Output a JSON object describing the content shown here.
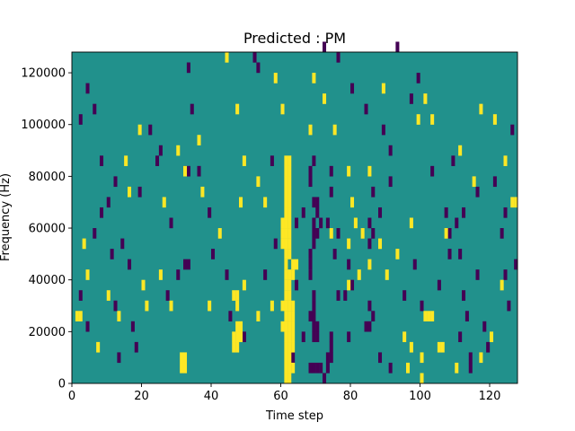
{
  "chart_data": {
    "type": "heatmap",
    "title": "Predicted : PM",
    "xlabel": "Time step",
    "ylabel": "Frequency (Hz)",
    "xlim": [
      0,
      128
    ],
    "ylim": [
      0,
      128000
    ],
    "x_ticks": [
      0,
      20,
      40,
      60,
      80,
      100,
      120
    ],
    "y_ticks": [
      0,
      20000,
      40000,
      60000,
      80000,
      100000,
      120000
    ],
    "grid": false,
    "legend": "none",
    "colormap": "viridis",
    "colors": {
      "background": "#21918c",
      "high": "#fde725",
      "low": "#440154"
    },
    "cell_size": {
      "time_steps": 1,
      "frequency_hz": 4000
    },
    "cell_value_levels": {
      "low": 0,
      "background": 0.5,
      "high": 1
    },
    "high_cells": [
      [
        61,
        0
      ],
      [
        62,
        0
      ],
      [
        61,
        4000
      ],
      [
        62,
        4000
      ],
      [
        63,
        4000
      ],
      [
        31,
        4000
      ],
      [
        32,
        4000
      ],
      [
        61,
        8000
      ],
      [
        62,
        8000
      ],
      [
        31,
        8000
      ],
      [
        32,
        8000
      ],
      [
        46,
        12000
      ],
      [
        47,
        12000
      ],
      [
        61,
        12000
      ],
      [
        62,
        12000
      ],
      [
        63,
        12000
      ],
      [
        46,
        16000
      ],
      [
        47,
        16000
      ],
      [
        48,
        16000
      ],
      [
        61,
        16000
      ],
      [
        62,
        16000
      ],
      [
        63,
        16000
      ],
      [
        47,
        20000
      ],
      [
        48,
        20000
      ],
      [
        60,
        20000
      ],
      [
        61,
        20000
      ],
      [
        62,
        20000
      ],
      [
        63,
        20000
      ],
      [
        1,
        24000
      ],
      [
        2,
        24000
      ],
      [
        61,
        24000
      ],
      [
        62,
        24000
      ],
      [
        63,
        24000
      ],
      [
        47,
        28000
      ],
      [
        60,
        28000
      ],
      [
        61,
        28000
      ],
      [
        62,
        28000
      ],
      [
        63,
        28000
      ],
      [
        46,
        32000
      ],
      [
        47,
        32000
      ],
      [
        61,
        32000
      ],
      [
        62,
        32000
      ],
      [
        61,
        36000
      ],
      [
        62,
        36000
      ],
      [
        61,
        40000
      ],
      [
        62,
        40000
      ],
      [
        63,
        40000
      ],
      [
        61,
        44000
      ],
      [
        63,
        44000
      ],
      [
        64,
        44000
      ],
      [
        61,
        48000
      ],
      [
        62,
        48000
      ],
      [
        60,
        52000
      ],
      [
        61,
        52000
      ],
      [
        62,
        52000
      ],
      [
        60,
        56000
      ],
      [
        61,
        56000
      ],
      [
        62,
        56000
      ],
      [
        60,
        60000
      ],
      [
        61,
        60000
      ],
      [
        62,
        60000
      ],
      [
        61,
        64000
      ],
      [
        62,
        64000
      ],
      [
        61,
        68000
      ],
      [
        62,
        68000
      ],
      [
        61,
        72000
      ],
      [
        62,
        72000
      ],
      [
        61,
        76000
      ],
      [
        62,
        76000
      ],
      [
        61,
        80000
      ],
      [
        62,
        80000
      ],
      [
        61,
        84000
      ],
      [
        62,
        84000
      ],
      [
        81,
        60000
      ],
      [
        79,
        52000
      ],
      [
        83,
        56000
      ],
      [
        80,
        68000
      ],
      [
        85,
        44000
      ],
      [
        79,
        36000
      ],
      [
        101,
        24000
      ],
      [
        102,
        24000
      ],
      [
        103,
        24000
      ],
      [
        97,
        12000
      ],
      [
        96,
        4000
      ],
      [
        100,
        8000
      ],
      [
        95,
        16000
      ],
      [
        100,
        0
      ],
      [
        105,
        12000
      ],
      [
        106,
        12000
      ],
      [
        110,
        4000
      ],
      [
        117,
        8000
      ],
      [
        120,
        16000
      ],
      [
        126,
        68000
      ],
      [
        127,
        68000
      ],
      [
        123,
        36000
      ],
      [
        3,
        52000
      ],
      [
        4,
        40000
      ],
      [
        7,
        12000
      ],
      [
        10,
        32000
      ],
      [
        13,
        24000
      ],
      [
        20,
        36000
      ],
      [
        21,
        28000
      ],
      [
        26,
        68000
      ],
      [
        30,
        88000
      ],
      [
        32,
        80000
      ],
      [
        37,
        72000
      ],
      [
        36,
        92000
      ],
      [
        47,
        104000
      ],
      [
        44,
        124000
      ],
      [
        49,
        84000
      ],
      [
        53,
        76000
      ],
      [
        55,
        68000
      ],
      [
        58,
        116000
      ],
      [
        60,
        104000
      ],
      [
        68,
        96000
      ],
      [
        69,
        116000
      ],
      [
        74,
        56000
      ],
      [
        79,
        80000
      ],
      [
        82,
        40000
      ],
      [
        85,
        80000
      ],
      [
        88,
        52000
      ],
      [
        90,
        40000
      ],
      [
        93,
        48000
      ],
      [
        97,
        60000
      ],
      [
        101,
        108000
      ],
      [
        103,
        100000
      ],
      [
        107,
        56000
      ],
      [
        111,
        88000
      ],
      [
        117,
        104000
      ],
      [
        121,
        100000
      ],
      [
        124,
        84000
      ],
      [
        15,
        84000
      ],
      [
        16,
        72000
      ],
      [
        19,
        96000
      ],
      [
        25,
        40000
      ],
      [
        28,
        28000
      ],
      [
        39,
        28000
      ],
      [
        42,
        56000
      ],
      [
        48,
        68000
      ],
      [
        49,
        36000
      ],
      [
        53,
        24000
      ],
      [
        57,
        28000
      ],
      [
        72,
        108000
      ],
      [
        75,
        96000
      ],
      [
        89,
        112000
      ],
      [
        99,
        100000
      ],
      [
        115,
        76000
      ]
    ],
    "low_cells": [
      [
        68,
        4000
      ],
      [
        69,
        4000
      ],
      [
        70,
        4000
      ],
      [
        71,
        4000
      ],
      [
        72,
        0
      ],
      [
        73,
        4000
      ],
      [
        73,
        8000
      ],
      [
        74,
        8000
      ],
      [
        74,
        12000
      ],
      [
        74,
        16000
      ],
      [
        69,
        16000
      ],
      [
        70,
        16000
      ],
      [
        69,
        20000
      ],
      [
        70,
        20000
      ],
      [
        68,
        24000
      ],
      [
        69,
        24000
      ],
      [
        69,
        28000
      ],
      [
        69,
        32000
      ],
      [
        68,
        40000
      ],
      [
        68,
        44000
      ],
      [
        68,
        48000
      ],
      [
        69,
        52000
      ],
      [
        69,
        56000
      ],
      [
        70,
        56000
      ],
      [
        69,
        60000
      ],
      [
        70,
        64000
      ],
      [
        69,
        68000
      ],
      [
        70,
        68000
      ],
      [
        68,
        76000
      ],
      [
        68,
        80000
      ],
      [
        69,
        84000
      ],
      [
        74,
        80000
      ],
      [
        74,
        72000
      ],
      [
        73,
        60000
      ],
      [
        71,
        60000
      ],
      [
        84,
        20000
      ],
      [
        85,
        20000
      ],
      [
        86,
        24000
      ],
      [
        85,
        28000
      ],
      [
        79,
        16000
      ],
      [
        76,
        32000
      ],
      [
        78,
        32000
      ],
      [
        75,
        48000
      ],
      [
        79,
        44000
      ],
      [
        80,
        36000
      ],
      [
        76,
        56000
      ],
      [
        85,
        52000
      ],
      [
        85,
        60000
      ],
      [
        86,
        56000
      ],
      [
        88,
        64000
      ],
      [
        86,
        72000
      ],
      [
        91,
        76000
      ],
      [
        32,
        80000
      ],
      [
        33,
        80000
      ],
      [
        32,
        44000
      ],
      [
        33,
        44000
      ],
      [
        30,
        40000
      ],
      [
        114,
        4000
      ],
      [
        114,
        8000
      ],
      [
        118,
        20000
      ],
      [
        113,
        24000
      ],
      [
        111,
        16000
      ],
      [
        112,
        32000
      ],
      [
        108,
        48000
      ],
      [
        108,
        56000
      ],
      [
        110,
        60000
      ],
      [
        112,
        64000
      ],
      [
        116,
        72000
      ],
      [
        121,
        76000
      ],
      [
        123,
        56000
      ],
      [
        124,
        40000
      ],
      [
        125,
        28000
      ],
      [
        127,
        44000
      ],
      [
        4,
        112000
      ],
      [
        6,
        104000
      ],
      [
        2,
        100000
      ],
      [
        8,
        84000
      ],
      [
        12,
        76000
      ],
      [
        10,
        68000
      ],
      [
        6,
        56000
      ],
      [
        14,
        52000
      ],
      [
        16,
        44000
      ],
      [
        12,
        28000
      ],
      [
        17,
        20000
      ],
      [
        13,
        8000
      ],
      [
        19,
        72000
      ],
      [
        22,
        96000
      ],
      [
        24,
        84000
      ],
      [
        28,
        60000
      ],
      [
        33,
        120000
      ],
      [
        34,
        104000
      ],
      [
        36,
        80000
      ],
      [
        39,
        64000
      ],
      [
        40,
        48000
      ],
      [
        44,
        40000
      ],
      [
        52,
        124000
      ],
      [
        53,
        120000
      ],
      [
        57,
        84000
      ],
      [
        64,
        60000
      ],
      [
        66,
        64000
      ],
      [
        72,
        128000
      ],
      [
        76,
        124000
      ],
      [
        80,
        112000
      ],
      [
        84,
        104000
      ],
      [
        89,
        96000
      ],
      [
        91,
        88000
      ],
      [
        93,
        128000
      ],
      [
        97,
        108000
      ],
      [
        99,
        116000
      ],
      [
        103,
        80000
      ],
      [
        107,
        64000
      ],
      [
        109,
        84000
      ],
      [
        111,
        48000
      ],
      [
        116,
        40000
      ],
      [
        119,
        12000
      ],
      [
        124,
        64000
      ],
      [
        126,
        96000
      ],
      [
        2,
        32000
      ],
      [
        4,
        20000
      ],
      [
        8,
        64000
      ],
      [
        11,
        48000
      ],
      [
        18,
        12000
      ],
      [
        25,
        88000
      ],
      [
        27,
        32000
      ],
      [
        45,
        24000
      ],
      [
        49,
        16000
      ],
      [
        55,
        40000
      ],
      [
        58,
        52000
      ],
      [
        63,
        8000
      ],
      [
        64,
        36000
      ],
      [
        66,
        16000
      ],
      [
        88,
        8000
      ],
      [
        91,
        4000
      ],
      [
        95,
        32000
      ],
      [
        98,
        44000
      ],
      [
        100,
        28000
      ],
      [
        105,
        36000
      ]
    ]
  }
}
